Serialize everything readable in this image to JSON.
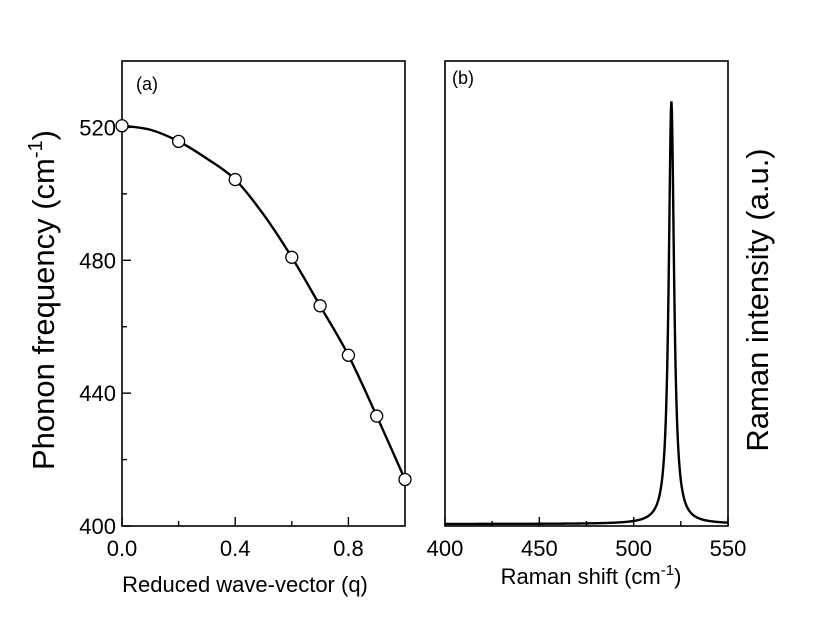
{
  "chart_data": [
    {
      "type": "line",
      "panel": "(a)",
      "xlabel": "Reduced wave-vector (q)",
      "ylabel": "Phonon frequency (cm",
      "ylabel_sup": "-1",
      "ylabel_close": ")",
      "xlim": [
        0.0,
        1.0
      ],
      "ylim": [
        400,
        540
      ],
      "xticks": [
        0.0,
        0.4,
        0.8
      ],
      "xtick_labels": [
        "0.0",
        "0.4",
        "0.8"
      ],
      "yticks": [
        400,
        440,
        480,
        520
      ],
      "ytick_labels": [
        "400",
        "440",
        "480",
        "520"
      ],
      "grid": false,
      "series": [
        {
          "style": "markers",
          "x": [
            0.0,
            0.2,
            0.4,
            0.6,
            0.7,
            0.8,
            0.9,
            1.0
          ],
          "y": [
            520.5,
            515.8,
            504.3,
            480.9,
            466.3,
            451.4,
            433.1,
            414.0
          ]
        },
        {
          "style": "line",
          "x": [
            0.0,
            0.1,
            0.2,
            0.3,
            0.4,
            0.5,
            0.6,
            0.7,
            0.8,
            0.9,
            1.0
          ],
          "y": [
            520.5,
            519.3,
            515.8,
            510.6,
            504.3,
            493.8,
            480.9,
            466.3,
            451.4,
            433.1,
            414.0
          ]
        }
      ]
    },
    {
      "type": "line",
      "panel": "(b)",
      "xlabel": "Raman shift (cm",
      "xlabel_sup": "-1",
      "xlabel_close": ")",
      "ylabel": "Raman intensity (a.u.)",
      "xlim": [
        400,
        550
      ],
      "ylim": [
        0,
        1.1
      ],
      "xticks": [
        400,
        450,
        500,
        550
      ],
      "xtick_labels": [
        "400",
        "450",
        "500",
        "550"
      ],
      "grid": false,
      "series": [
        {
          "peak_position": 520,
          "peak_height": 1.0,
          "half_width": 1.7,
          "baseline": 0.0
        }
      ]
    }
  ]
}
